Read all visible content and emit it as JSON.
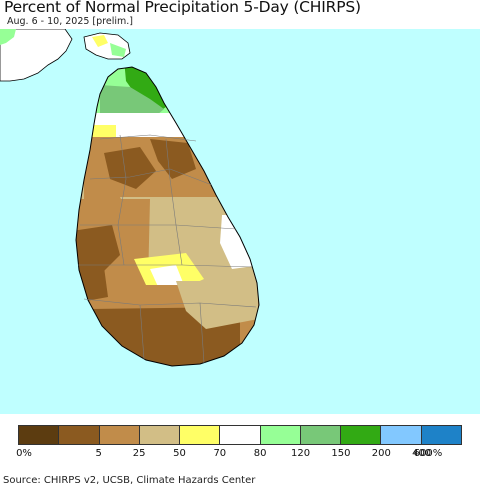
{
  "title": "Percent of Normal Precipitation 5-Day (CHIRPS)",
  "subtitle": "Aug. 6 - 10, 2025 [prelim.]",
  "map": {
    "region": "Sri Lanka",
    "ocean_color": "#bfffff"
  },
  "legend": {
    "colors": [
      "#5c3c10",
      "#8b5a20",
      "#c18c4a",
      "#d2be86",
      "#ffff66",
      "#ffffff",
      "#96ff96",
      "#78c878",
      "#32aa14",
      "#82c8ff",
      "#1e82c8"
    ],
    "labels": [
      "0%",
      "5",
      "25",
      "50",
      "70",
      "80",
      "120",
      "150",
      "200",
      "400",
      "600%"
    ]
  },
  "footer": "Source: CHIRPS v2, UCSB, Climate Hazards Center"
}
